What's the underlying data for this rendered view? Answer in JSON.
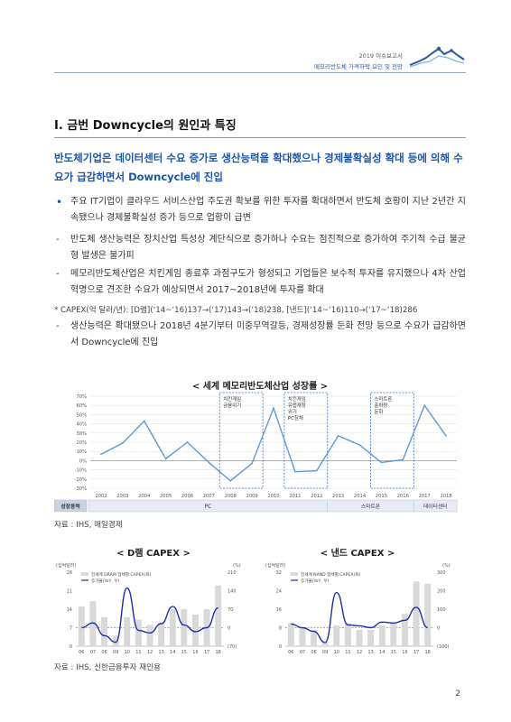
{
  "header": {
    "line1": "2019 이슈보고서",
    "line2": "메모리반도체 가격하락 요인 및 전망"
  },
  "section": {
    "title": "Ⅰ. 금번 Downcycle의 원인과 특징",
    "lead": "반도체기업은 데이터센터 수요 증가로 생산능력을 확대했으나 경제불확실성 확대 등에 의해 수요가 급감하면서 Downcycle에 진입"
  },
  "bullets": [
    {
      "marker": "•",
      "text": "주요 IT기업이 클라우드 서비스산업 주도권 확보를 위한 투자를 확대하면서 반도체 호황이 지난 2년간 지속됐으나 경제불확실성 증가 등으로 업황이 급변"
    },
    {
      "marker": "-",
      "text": "반도체 생산능력은 장치산업 특성상 계단식으로 증가하나 수요는 점진적으로 증가하여 주기적 수급 불균형 발생은 불가피"
    },
    {
      "marker": "-",
      "text": "메모리반도체산업은 치킨게임 종료후 과점구도가 형성되고 기업들은 보수적 투자를 유지했으나 4차 산업혁명으로 견조한 수요가 예상되면서 2017~2018년에 투자를 확대"
    }
  ],
  "note": "* CAPEX(억 달러/년): [D램](‘14~‘16)137→(‘17)143→(‘18)238, [낸드](‘14~‘16)110→(‘17~‘18)286",
  "bullet_last": {
    "marker": "-",
    "text": "생산능력은 확대됐으나 2018년 4분기부터 미중무역갈등, 경제성장률 둔화 전망 등으로 수요가 급감하면서 Downcycle에 진입"
  },
  "figure1": {
    "caption": "< 세계 메모리반도체산업 성장률 >",
    "source": "자료 : IHS, 매일경제",
    "annotations": [
      {
        "label": "치킨게임\n금융위기",
        "from": "2008",
        "to": "2009"
      },
      {
        "label": "치킨게임\n유럽재정\n위기\nPC침체",
        "from": "2011",
        "to": "2012"
      },
      {
        "label": "스마트폰\n출하량\n둔화",
        "from": "2015",
        "to": "2016"
      }
    ],
    "bands": [
      {
        "label": "성장동력",
        "from": "label",
        "to": "label"
      },
      {
        "label": "PC",
        "from": "2002",
        "to": "2012"
      },
      {
        "label": "스마트폰",
        "from": "2013",
        "to": "2016"
      },
      {
        "label": "데이터센터",
        "from": "2017",
        "to": "2018"
      }
    ]
  },
  "figure2": {
    "caption": "< D램 CAPEX >"
  },
  "figure3": {
    "caption": "< 낸드 CAPEX >"
  },
  "source2": "자료 : IHS, 신한금융투자 재인용",
  "page_number": "2",
  "colors": {
    "accent": "#1a56a8",
    "line": "#5b9bd5",
    "bar": "#d9d9d9",
    "series": "#1c2fa8"
  },
  "chart_data": [
    {
      "type": "line",
      "title": "< 세계 메모리반도체산업 성장률 >",
      "x": [
        "2002",
        "2003",
        "2004",
        "2005",
        "2006",
        "2007",
        "2008",
        "2009",
        "2010",
        "2011",
        "2012",
        "2013",
        "2014",
        "2015",
        "2016",
        "2017",
        "2018"
      ],
      "series": [
        {
          "values": [
            7,
            19,
            43,
            2,
            20,
            -2,
            -22,
            -3,
            57,
            -12,
            -11,
            27,
            17,
            -2,
            1,
            60,
            27
          ]
        }
      ],
      "yticks": [
        "70%",
        "60%",
        "50%",
        "40%",
        "30%",
        "20%",
        "10%",
        "0%",
        "-10%",
        "-20%",
        "-30%"
      ],
      "ylim": [
        -30,
        70
      ],
      "grid": true,
      "xlabel": "",
      "ylabel": ""
    },
    {
      "type": "bar",
      "title": "< D램 CAPEX >",
      "categories": [
        "06",
        "07",
        "08",
        "09",
        "10",
        "11",
        "12",
        "13",
        "14",
        "15",
        "16",
        "17",
        "18"
      ],
      "series": [
        {
          "name": "전세계 DRAM 업체별 CAPEX(좌)",
          "values": [
            15,
            17,
            11,
            4,
            11,
            10,
            8,
            9,
            14,
            14,
            12,
            14,
            23
          ]
        },
        {
          "name": "증가율(YoY, 우)",
          "values": [
            0,
            18,
            -30,
            -55,
            150,
            -10,
            -20,
            15,
            80,
            10,
            -15,
            0,
            75
          ]
        }
      ],
      "yticks_left": [
        "28",
        "21",
        "14",
        "7",
        "0"
      ],
      "yticks_right": [
        "210",
        "140",
        "70",
        "0",
        "(70)"
      ],
      "ylim_left": [
        0,
        28
      ],
      "ylim_right": [
        -70,
        210
      ],
      "ylabel_left": "(십억달러)",
      "ylabel_right": "(%)",
      "xlabel": ""
    },
    {
      "type": "bar",
      "title": "< 낸드 CAPEX >",
      "categories": [
        "06",
        "07",
        "08",
        "09",
        "10",
        "11",
        "12",
        "13",
        "14",
        "15",
        "16",
        "17",
        "18"
      ],
      "series": [
        {
          "name": "전세계 NAND 업체별 CAPEX(좌)",
          "values": [
            10,
            8,
            7,
            2,
            9,
            10,
            7,
            7,
            9,
            10,
            14,
            28,
            27
          ]
        },
        {
          "name": "증가율(YoY, 우)",
          "values": [
            20,
            0,
            -20,
            -80,
            190,
            15,
            10,
            0,
            30,
            25,
            40,
            110,
            0
          ]
        }
      ],
      "yticks_left": [
        "32",
        "24",
        "16",
        "8",
        "0"
      ],
      "yticks_right": [
        "300",
        "200",
        "100",
        "0",
        "(100)"
      ],
      "ylim_left": [
        0,
        32
      ],
      "ylim_right": [
        -100,
        300
      ],
      "ylabel_left": "(십억달러)",
      "ylabel_right": "(%)",
      "xlabel": ""
    }
  ]
}
